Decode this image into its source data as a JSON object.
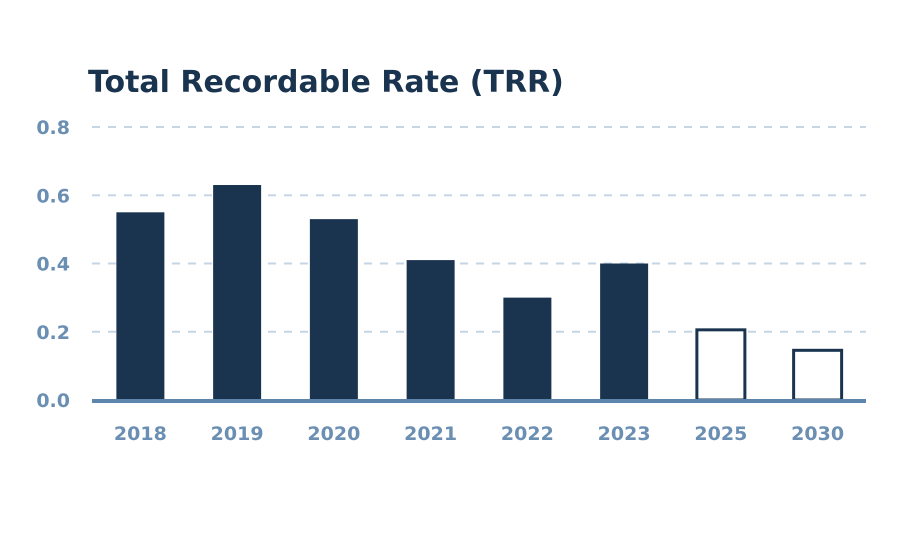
{
  "chart_data": {
    "type": "bar",
    "title": "Total Recordable Rate (TRR)",
    "xlabel": "",
    "ylabel": "",
    "categories": [
      "2018",
      "2019",
      "2020",
      "2021",
      "2022",
      "2023",
      "2025",
      "2030"
    ],
    "values": [
      0.55,
      0.63,
      0.53,
      0.41,
      0.3,
      0.4,
      0.21,
      0.15
    ],
    "target": [
      false,
      false,
      false,
      false,
      false,
      false,
      true,
      true
    ],
    "yticks": [
      "0.0",
      "0.2",
      "0.4",
      "0.6",
      "0.8"
    ],
    "ylim": [
      0,
      0.8
    ],
    "grid": true,
    "legend": "none",
    "colors": {
      "bar": "#1a3450",
      "target_fill": "#ffffff",
      "target_stroke": "#1a3450",
      "grid": "#c5d5e4",
      "axis": "#5e86ad",
      "tick_text": "#6a8fb2",
      "title": "#1a3450"
    }
  }
}
